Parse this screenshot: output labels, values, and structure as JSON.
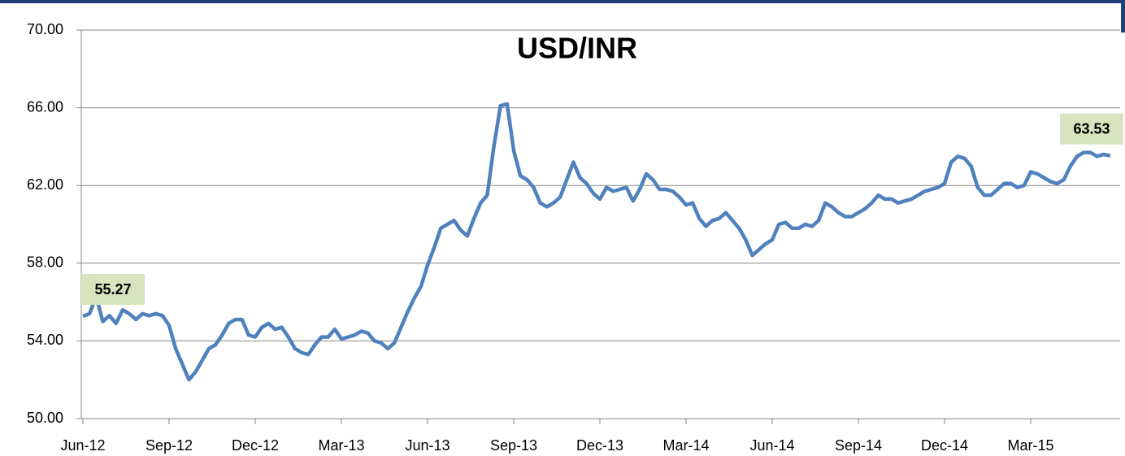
{
  "chart_data": {
    "type": "line",
    "title": "USD/INR",
    "categories": [
      "Jun-12",
      null,
      null,
      null,
      null,
      null,
      null,
      null,
      null,
      null,
      null,
      null,
      null,
      "Sep-12",
      null,
      null,
      null,
      null,
      null,
      null,
      null,
      null,
      null,
      null,
      null,
      null,
      "Dec-12",
      null,
      null,
      null,
      null,
      null,
      null,
      null,
      null,
      null,
      null,
      null,
      null,
      "Mar-13",
      null,
      null,
      null,
      null,
      null,
      null,
      null,
      null,
      null,
      null,
      null,
      null,
      "Jun-13",
      null,
      null,
      null,
      null,
      null,
      null,
      null,
      null,
      null,
      null,
      null,
      null,
      "Sep-13",
      null,
      null,
      null,
      null,
      null,
      null,
      null,
      null,
      null,
      null,
      null,
      null,
      "Dec-13",
      null,
      null,
      null,
      null,
      null,
      null,
      null,
      null,
      null,
      null,
      null,
      null,
      "Mar-14",
      null,
      null,
      null,
      null,
      null,
      null,
      null,
      null,
      null,
      null,
      null,
      null,
      "Jun-14",
      null,
      null,
      null,
      null,
      null,
      null,
      null,
      null,
      null,
      null,
      null,
      null,
      "Sep-14",
      null,
      null,
      null,
      null,
      null,
      null,
      null,
      null,
      null,
      null,
      null,
      null,
      "Dec-14",
      null,
      null,
      null,
      null,
      null,
      null,
      null,
      null,
      null,
      null,
      null,
      null,
      "Mar-15",
      null,
      null,
      null,
      null,
      null,
      null,
      null,
      null,
      null,
      null,
      null,
      null
    ],
    "series": [
      {
        "name": "USD/INR",
        "color": "#4f81bd",
        "values": [
          55.27,
          55.4,
          56.3,
          55.0,
          55.3,
          54.9,
          55.6,
          55.4,
          55.1,
          55.4,
          55.3,
          55.4,
          55.3,
          54.8,
          53.6,
          52.8,
          52.0,
          52.4,
          53.0,
          53.6,
          53.8,
          54.3,
          54.9,
          55.1,
          55.1,
          54.3,
          54.2,
          54.7,
          54.9,
          54.6,
          54.7,
          54.2,
          53.6,
          53.4,
          53.3,
          53.8,
          54.2,
          54.2,
          54.6,
          54.1,
          54.2,
          54.3,
          54.5,
          54.4,
          54.0,
          53.9,
          53.6,
          53.9,
          54.7,
          55.5,
          56.2,
          56.8,
          57.9,
          58.8,
          59.8,
          60.0,
          60.2,
          59.7,
          59.4,
          60.3,
          61.1,
          61.5,
          64.0,
          66.1,
          66.2,
          63.8,
          62.5,
          62.3,
          61.9,
          61.1,
          60.9,
          61.1,
          61.4,
          62.3,
          63.2,
          62.4,
          62.1,
          61.6,
          61.3,
          61.9,
          61.7,
          61.8,
          61.9,
          61.2,
          61.8,
          62.6,
          62.3,
          61.8,
          61.8,
          61.7,
          61.4,
          61.0,
          61.1,
          60.3,
          59.9,
          60.2,
          60.3,
          60.6,
          60.2,
          59.8,
          59.2,
          58.4,
          58.7,
          59.0,
          59.2,
          60.0,
          60.1,
          59.8,
          59.8,
          60.0,
          59.9,
          60.2,
          61.1,
          60.9,
          60.6,
          60.4,
          60.4,
          60.6,
          60.8,
          61.1,
          61.5,
          61.3,
          61.3,
          61.1,
          61.2,
          61.3,
          61.5,
          61.7,
          61.8,
          61.9,
          62.1,
          63.2,
          63.5,
          63.4,
          63.0,
          61.9,
          61.5,
          61.5,
          61.8,
          62.1,
          62.1,
          61.9,
          62.0,
          62.7,
          62.6,
          62.4,
          62.2,
          62.1,
          62.3,
          63.0,
          63.5,
          63.7,
          63.7,
          63.5,
          63.6,
          63.53
        ],
        "value_labels": [
          "55.27",
          null,
          null,
          null,
          null,
          null,
          null,
          null,
          null,
          null,
          null,
          null,
          null,
          null,
          null,
          null,
          null,
          null,
          null,
          null,
          null,
          null,
          null,
          null,
          null,
          null,
          null,
          null,
          null,
          null,
          null,
          null,
          null,
          null,
          null,
          null,
          null,
          null,
          null,
          null,
          null,
          null,
          null,
          null,
          null,
          null,
          null,
          null,
          null,
          null,
          null,
          null,
          null,
          null,
          null,
          null,
          null,
          null,
          null,
          null,
          null,
          null,
          null,
          null,
          null,
          null,
          null,
          null,
          null,
          null,
          null,
          null,
          null,
          null,
          null,
          null,
          null,
          null,
          null,
          null,
          null,
          null,
          null,
          null,
          null,
          null,
          null,
          null,
          null,
          null,
          null,
          null,
          null,
          null,
          null,
          null,
          null,
          null,
          null,
          null,
          null,
          null,
          null,
          null,
          null,
          null,
          null,
          null,
          null,
          null,
          null,
          null,
          null,
          null,
          null,
          null,
          null,
          null,
          null,
          null,
          null,
          null,
          null,
          null,
          null,
          null,
          null,
          null,
          null,
          null,
          null,
          null,
          null,
          null,
          null,
          null,
          null,
          null,
          null,
          null,
          null,
          null,
          null,
          null,
          null,
          null,
          null,
          null,
          null,
          null,
          null,
          null,
          null,
          null,
          null,
          "63.53"
        ]
      }
    ],
    "ylim": [
      50,
      70
    ],
    "yticks": [
      {
        "value": 50,
        "label": "50.00"
      },
      {
        "value": 54,
        "label": "54.00"
      },
      {
        "value": 58,
        "label": "58.00"
      },
      {
        "value": 62,
        "label": "62.00"
      },
      {
        "value": 66,
        "label": "66.00"
      },
      {
        "value": 70,
        "label": "70.00"
      }
    ],
    "grid": true,
    "label_background": "#d7e4bd"
  }
}
